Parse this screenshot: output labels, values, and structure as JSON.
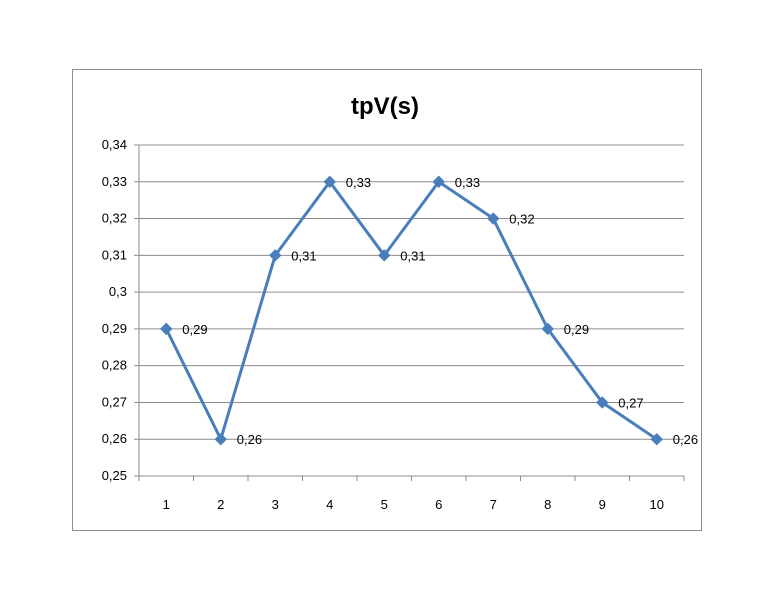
{
  "chart_data": {
    "type": "line",
    "title": "tpV(s)",
    "xlabel": "",
    "ylabel": "",
    "categories": [
      "1",
      "2",
      "3",
      "4",
      "5",
      "6",
      "7",
      "8",
      "9",
      "10"
    ],
    "series": [
      {
        "values": [
          0.29,
          0.26,
          0.31,
          0.33,
          0.31,
          0.33,
          0.32,
          0.29,
          0.27,
          0.26
        ],
        "data_labels": [
          "0,29",
          "0,26",
          "0,31",
          "0,33",
          "0,31",
          "0,33",
          "0,32",
          "0,29",
          "0,27",
          "0,26"
        ],
        "color": "#4a7ebb",
        "marker": "diamond"
      }
    ],
    "ylim": [
      0.25,
      0.34
    ],
    "yticks": [
      0.25,
      0.26,
      0.27,
      0.28,
      0.29,
      0.3,
      0.31,
      0.32,
      0.33,
      0.34
    ],
    "ytick_labels": [
      "0,25",
      "0,26",
      "0,27",
      "0,28",
      "0,29",
      "0,3",
      "0,31",
      "0,32",
      "0,33",
      "0,34"
    ],
    "grid": true,
    "gridline_color": "#8c8c8c",
    "legend": "none"
  }
}
